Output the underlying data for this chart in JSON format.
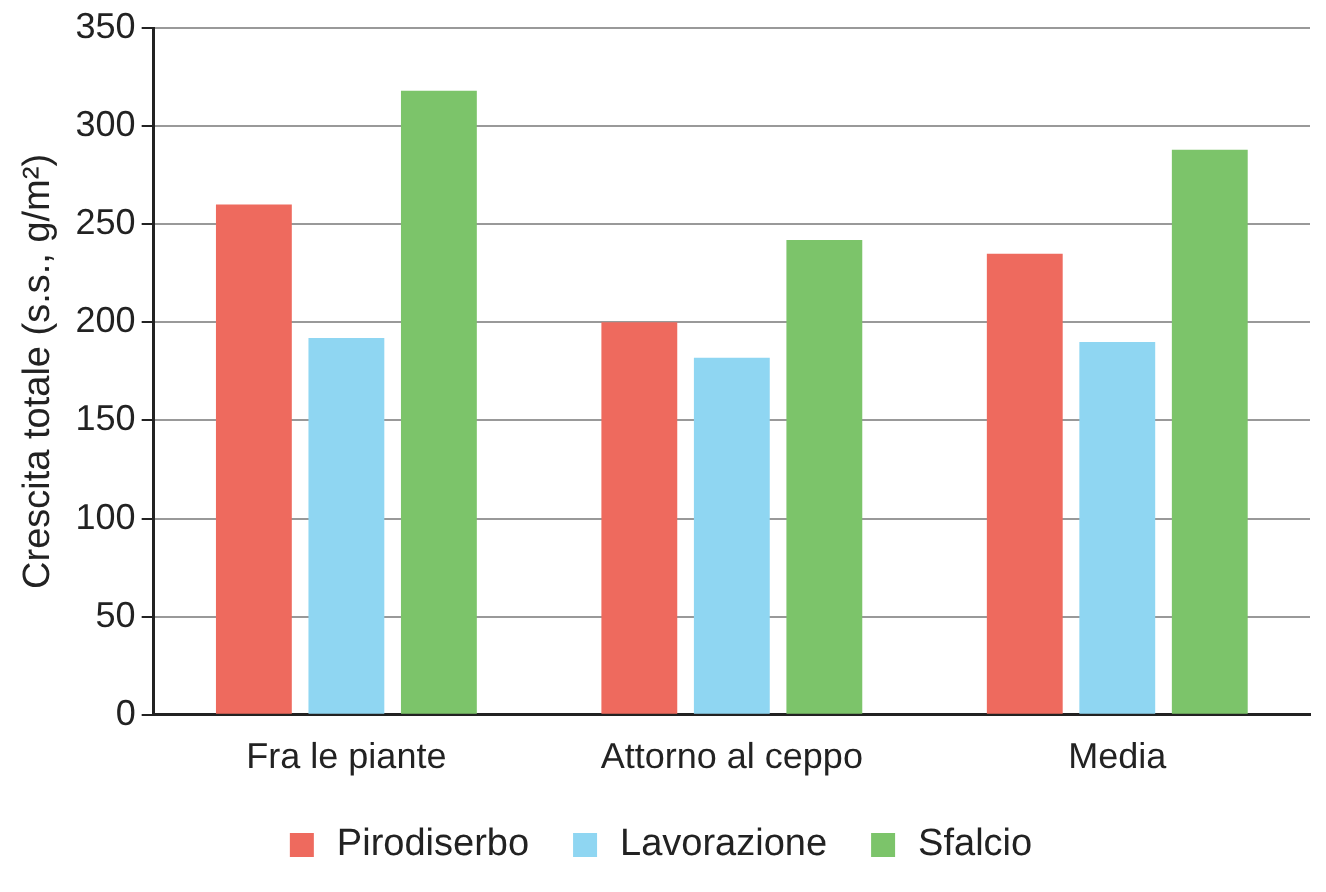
{
  "chart_data": {
    "type": "bar",
    "ylabel": "Crescita totale (s.s., g/m²)",
    "categories": [
      "Fra le piante",
      "Attorno al ceppo",
      "Media"
    ],
    "series": [
      {
        "name": "Pirodiserbo",
        "color": "#ee6a5e",
        "values": [
          260,
          200,
          235
        ]
      },
      {
        "name": "Lavorazione",
        "color": "#8fd6f2",
        "values": [
          192,
          182,
          190
        ]
      },
      {
        "name": "Sfalcio",
        "color": "#7cc46a",
        "values": [
          318,
          242,
          288
        ]
      }
    ],
    "ylim": [
      0,
      350
    ],
    "yticks": [
      0,
      50,
      100,
      150,
      200,
      250,
      300,
      350
    ],
    "grid": "y",
    "legend": "bottom"
  }
}
